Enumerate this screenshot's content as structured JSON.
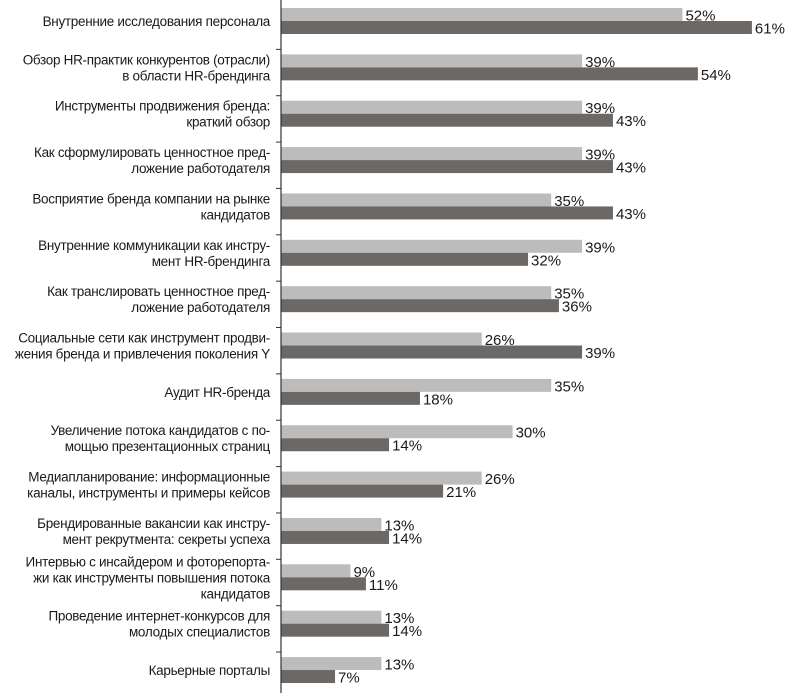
{
  "chart_data": {
    "type": "bar",
    "orientation": "horizontal",
    "grid": false,
    "legend": "none",
    "xlim": [
      0,
      61
    ],
    "value_suffix": "%",
    "colors": {
      "series_1": "#bdbcbc",
      "series_2": "#6b6866"
    },
    "categories": [
      [
        "Внутренние исследования персонала"
      ],
      [
        "Обзор HR-практик конкурентов (отрасли)",
        "в области HR-брендинга"
      ],
      [
        "Инструменты продвижения бренда:",
        "краткий обзор"
      ],
      [
        "Как сформулировать ценностное пред-",
        "ложение работодателя"
      ],
      [
        "Восприятие бренда компании на рынке",
        "кандидатов"
      ],
      [
        "Внутренние коммуникации как инстру-",
        "мент HR-брендинга"
      ],
      [
        "Как транслировать ценностное пред-",
        "ложение работодателя"
      ],
      [
        "Социальные сети как инструмент продви-",
        "жения бренда и привлечения поколения Y"
      ],
      [
        "Аудит HR-бренда"
      ],
      [
        "Увеличение потока кандидатов с по-",
        "мощью презентационных страниц"
      ],
      [
        "Медиапланирование: информационные",
        "каналы, инструменты и примеры кейсов"
      ],
      [
        "Брендированные вакансии как инстру-",
        "мент рекрутмента: секреты успеха"
      ],
      [
        "Интервью с инсайдером и фоторепорта-",
        "жи как инструменты повышения потока",
        "кандидатов"
      ],
      [
        "Проведение интернет-конкурсов для",
        "молодых специалистов"
      ],
      [
        "Карьерные порталы"
      ]
    ],
    "series": [
      {
        "values": [
          52,
          39,
          39,
          39,
          35,
          39,
          35,
          26,
          35,
          30,
          26,
          13,
          9,
          13,
          13
        ]
      },
      {
        "values": [
          61,
          54,
          43,
          43,
          43,
          32,
          36,
          39,
          18,
          14,
          21,
          14,
          11,
          14,
          7
        ]
      }
    ]
  }
}
